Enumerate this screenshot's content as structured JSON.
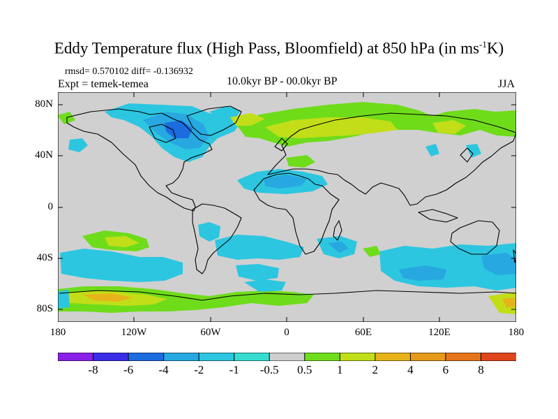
{
  "title": {
    "main": "Eddy Temperature flux (High Pass, Bloomfield) at 850 hPa (in ms",
    "sup": "-1",
    "tail": "K)"
  },
  "stats": "rmsd= 0.570102 diff= -0.136932",
  "experiment": "Expt = temek-temea",
  "period": "10.0kyr BP - 00.0kyr BP",
  "season": "JJA",
  "lat_labels": [
    "80N",
    "40N",
    "0",
    "40S",
    "80S"
  ],
  "lon_labels": [
    "180",
    "120W",
    "60W",
    "0",
    "60E",
    "120E",
    "180"
  ],
  "colorbar": {
    "labels": [
      "-8",
      "-6",
      "-4",
      "-2",
      "-1",
      "-0.5",
      "0.5",
      "1",
      "2",
      "4",
      "6",
      "8"
    ],
    "colors": [
      "#8a1fe8",
      "#3a2de6",
      "#1c6ce0",
      "#27a8e0",
      "#2cc6e0",
      "#36dcce",
      "#cfcfcf",
      "#6fdc1a",
      "#c2de18",
      "#e6b41a",
      "#e69a1a",
      "#e6741a",
      "#e0451c"
    ]
  },
  "field": {
    "background_color": "#d0d0d0",
    "coastline_color": "#000000"
  }
}
